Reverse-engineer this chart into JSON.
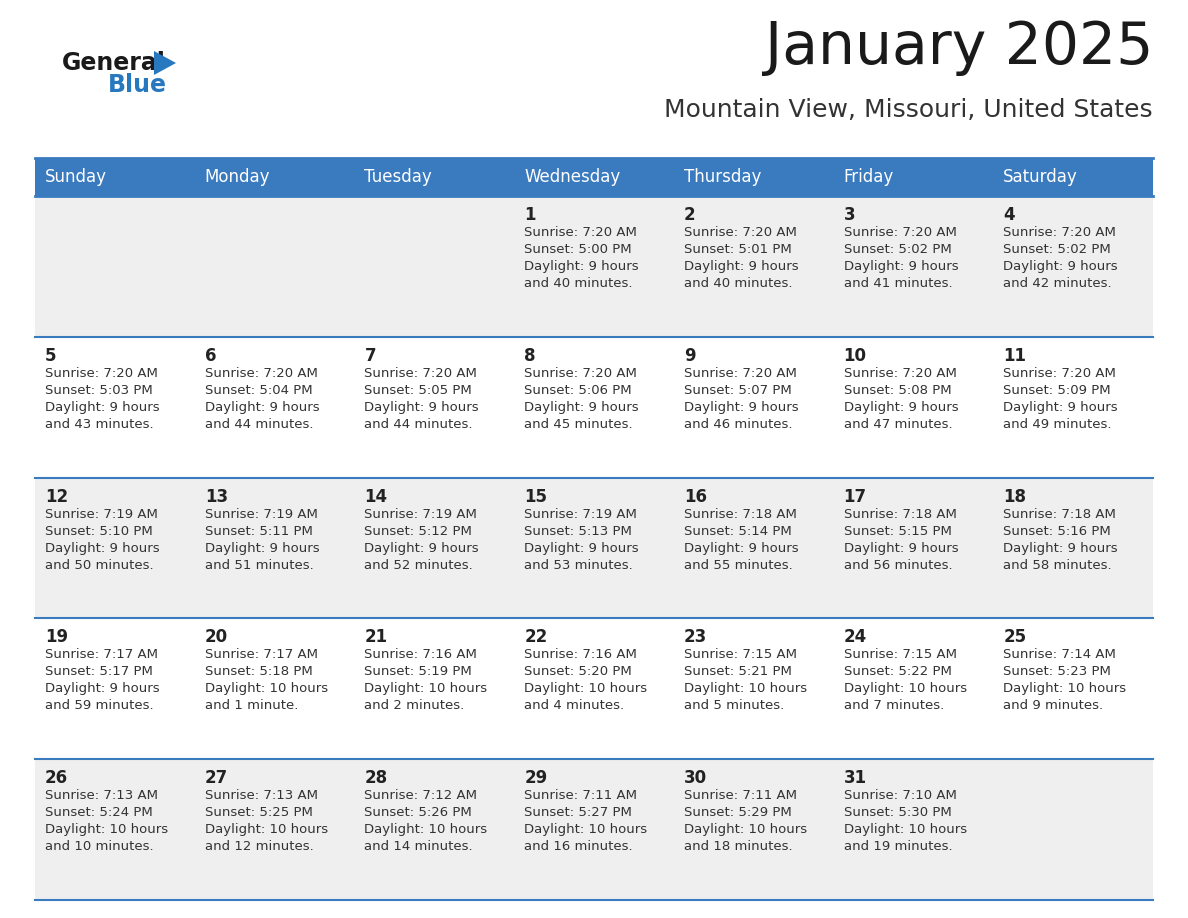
{
  "title": "January 2025",
  "subtitle": "Mountain View, Missouri, United States",
  "header_bg": "#3a7abf",
  "header_text_color": "#ffffff",
  "row_bg_odd": "#efefef",
  "row_bg_even": "#ffffff",
  "border_color": "#3a7abf",
  "day_headers": [
    "Sunday",
    "Monday",
    "Tuesday",
    "Wednesday",
    "Thursday",
    "Friday",
    "Saturday"
  ],
  "title_color": "#1a1a1a",
  "subtitle_color": "#333333",
  "day_number_color": "#222222",
  "cell_text_color": "#333333",
  "logo_general_color": "#1a1a1a",
  "logo_blue_color": "#2878bf",
  "bg_color": "#ffffff",
  "days": [
    {
      "day": 0,
      "row": 0,
      "col": 0,
      "data": null
    },
    {
      "day": 0,
      "row": 0,
      "col": 1,
      "data": null
    },
    {
      "day": 0,
      "row": 0,
      "col": 2,
      "data": null
    },
    {
      "day": 1,
      "row": 0,
      "col": 3,
      "data": {
        "sunrise": "7:20 AM",
        "sunset": "5:00 PM",
        "daylight_line1": "9 hours",
        "daylight_line2": "and 40 minutes."
      }
    },
    {
      "day": 2,
      "row": 0,
      "col": 4,
      "data": {
        "sunrise": "7:20 AM",
        "sunset": "5:01 PM",
        "daylight_line1": "9 hours",
        "daylight_line2": "and 40 minutes."
      }
    },
    {
      "day": 3,
      "row": 0,
      "col": 5,
      "data": {
        "sunrise": "7:20 AM",
        "sunset": "5:02 PM",
        "daylight_line1": "9 hours",
        "daylight_line2": "and 41 minutes."
      }
    },
    {
      "day": 4,
      "row": 0,
      "col": 6,
      "data": {
        "sunrise": "7:20 AM",
        "sunset": "5:02 PM",
        "daylight_line1": "9 hours",
        "daylight_line2": "and 42 minutes."
      }
    },
    {
      "day": 5,
      "row": 1,
      "col": 0,
      "data": {
        "sunrise": "7:20 AM",
        "sunset": "5:03 PM",
        "daylight_line1": "9 hours",
        "daylight_line2": "and 43 minutes."
      }
    },
    {
      "day": 6,
      "row": 1,
      "col": 1,
      "data": {
        "sunrise": "7:20 AM",
        "sunset": "5:04 PM",
        "daylight_line1": "9 hours",
        "daylight_line2": "and 44 minutes."
      }
    },
    {
      "day": 7,
      "row": 1,
      "col": 2,
      "data": {
        "sunrise": "7:20 AM",
        "sunset": "5:05 PM",
        "daylight_line1": "9 hours",
        "daylight_line2": "and 44 minutes."
      }
    },
    {
      "day": 8,
      "row": 1,
      "col": 3,
      "data": {
        "sunrise": "7:20 AM",
        "sunset": "5:06 PM",
        "daylight_line1": "9 hours",
        "daylight_line2": "and 45 minutes."
      }
    },
    {
      "day": 9,
      "row": 1,
      "col": 4,
      "data": {
        "sunrise": "7:20 AM",
        "sunset": "5:07 PM",
        "daylight_line1": "9 hours",
        "daylight_line2": "and 46 minutes."
      }
    },
    {
      "day": 10,
      "row": 1,
      "col": 5,
      "data": {
        "sunrise": "7:20 AM",
        "sunset": "5:08 PM",
        "daylight_line1": "9 hours",
        "daylight_line2": "and 47 minutes."
      }
    },
    {
      "day": 11,
      "row": 1,
      "col": 6,
      "data": {
        "sunrise": "7:20 AM",
        "sunset": "5:09 PM",
        "daylight_line1": "9 hours",
        "daylight_line2": "and 49 minutes."
      }
    },
    {
      "day": 12,
      "row": 2,
      "col": 0,
      "data": {
        "sunrise": "7:19 AM",
        "sunset": "5:10 PM",
        "daylight_line1": "9 hours",
        "daylight_line2": "and 50 minutes."
      }
    },
    {
      "day": 13,
      "row": 2,
      "col": 1,
      "data": {
        "sunrise": "7:19 AM",
        "sunset": "5:11 PM",
        "daylight_line1": "9 hours",
        "daylight_line2": "and 51 minutes."
      }
    },
    {
      "day": 14,
      "row": 2,
      "col": 2,
      "data": {
        "sunrise": "7:19 AM",
        "sunset": "5:12 PM",
        "daylight_line1": "9 hours",
        "daylight_line2": "and 52 minutes."
      }
    },
    {
      "day": 15,
      "row": 2,
      "col": 3,
      "data": {
        "sunrise": "7:19 AM",
        "sunset": "5:13 PM",
        "daylight_line1": "9 hours",
        "daylight_line2": "and 53 minutes."
      }
    },
    {
      "day": 16,
      "row": 2,
      "col": 4,
      "data": {
        "sunrise": "7:18 AM",
        "sunset": "5:14 PM",
        "daylight_line1": "9 hours",
        "daylight_line2": "and 55 minutes."
      }
    },
    {
      "day": 17,
      "row": 2,
      "col": 5,
      "data": {
        "sunrise": "7:18 AM",
        "sunset": "5:15 PM",
        "daylight_line1": "9 hours",
        "daylight_line2": "and 56 minutes."
      }
    },
    {
      "day": 18,
      "row": 2,
      "col": 6,
      "data": {
        "sunrise": "7:18 AM",
        "sunset": "5:16 PM",
        "daylight_line1": "9 hours",
        "daylight_line2": "and 58 minutes."
      }
    },
    {
      "day": 19,
      "row": 3,
      "col": 0,
      "data": {
        "sunrise": "7:17 AM",
        "sunset": "5:17 PM",
        "daylight_line1": "9 hours",
        "daylight_line2": "and 59 minutes."
      }
    },
    {
      "day": 20,
      "row": 3,
      "col": 1,
      "data": {
        "sunrise": "7:17 AM",
        "sunset": "5:18 PM",
        "daylight_line1": "10 hours",
        "daylight_line2": "and 1 minute."
      }
    },
    {
      "day": 21,
      "row": 3,
      "col": 2,
      "data": {
        "sunrise": "7:16 AM",
        "sunset": "5:19 PM",
        "daylight_line1": "10 hours",
        "daylight_line2": "and 2 minutes."
      }
    },
    {
      "day": 22,
      "row": 3,
      "col": 3,
      "data": {
        "sunrise": "7:16 AM",
        "sunset": "5:20 PM",
        "daylight_line1": "10 hours",
        "daylight_line2": "and 4 minutes."
      }
    },
    {
      "day": 23,
      "row": 3,
      "col": 4,
      "data": {
        "sunrise": "7:15 AM",
        "sunset": "5:21 PM",
        "daylight_line1": "10 hours",
        "daylight_line2": "and 5 minutes."
      }
    },
    {
      "day": 24,
      "row": 3,
      "col": 5,
      "data": {
        "sunrise": "7:15 AM",
        "sunset": "5:22 PM",
        "daylight_line1": "10 hours",
        "daylight_line2": "and 7 minutes."
      }
    },
    {
      "day": 25,
      "row": 3,
      "col": 6,
      "data": {
        "sunrise": "7:14 AM",
        "sunset": "5:23 PM",
        "daylight_line1": "10 hours",
        "daylight_line2": "and 9 minutes."
      }
    },
    {
      "day": 26,
      "row": 4,
      "col": 0,
      "data": {
        "sunrise": "7:13 AM",
        "sunset": "5:24 PM",
        "daylight_line1": "10 hours",
        "daylight_line2": "and 10 minutes."
      }
    },
    {
      "day": 27,
      "row": 4,
      "col": 1,
      "data": {
        "sunrise": "7:13 AM",
        "sunset": "5:25 PM",
        "daylight_line1": "10 hours",
        "daylight_line2": "and 12 minutes."
      }
    },
    {
      "day": 28,
      "row": 4,
      "col": 2,
      "data": {
        "sunrise": "7:12 AM",
        "sunset": "5:26 PM",
        "daylight_line1": "10 hours",
        "daylight_line2": "and 14 minutes."
      }
    },
    {
      "day": 29,
      "row": 4,
      "col": 3,
      "data": {
        "sunrise": "7:11 AM",
        "sunset": "5:27 PM",
        "daylight_line1": "10 hours",
        "daylight_line2": "and 16 minutes."
      }
    },
    {
      "day": 30,
      "row": 4,
      "col": 4,
      "data": {
        "sunrise": "7:11 AM",
        "sunset": "5:29 PM",
        "daylight_line1": "10 hours",
        "daylight_line2": "and 18 minutes."
      }
    },
    {
      "day": 31,
      "row": 4,
      "col": 5,
      "data": {
        "sunrise": "7:10 AM",
        "sunset": "5:30 PM",
        "daylight_line1": "10 hours",
        "daylight_line2": "and 19 minutes."
      }
    },
    {
      "day": 0,
      "row": 4,
      "col": 6,
      "data": null
    }
  ]
}
